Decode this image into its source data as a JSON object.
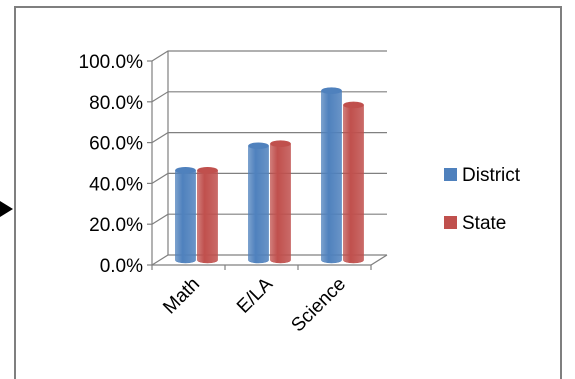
{
  "chart_data": {
    "type": "bar",
    "style": "3d-cylinder",
    "categories": [
      "Math",
      "E/LA",
      "Science"
    ],
    "series": [
      {
        "name": "District",
        "values": [
          44,
          56,
          83
        ],
        "color": "#4f81bd"
      },
      {
        "name": "State",
        "values": [
          44,
          57,
          76
        ],
        "color": "#c0504d"
      }
    ],
    "ylim": [
      0,
      100
    ],
    "yticks": [
      0,
      20,
      40,
      60,
      80,
      100
    ],
    "ytick_labels": [
      "0.0%",
      "20.0%",
      "40.0%",
      "60.0%",
      "80.0%",
      "100.0%"
    ],
    "grid": true,
    "legend": "right",
    "title": "",
    "xlabel": "",
    "ylabel": ""
  },
  "colors": {
    "frame": "#7f7f7f",
    "axis": "#808080",
    "grid": "#808080",
    "pointer": "#000000"
  }
}
